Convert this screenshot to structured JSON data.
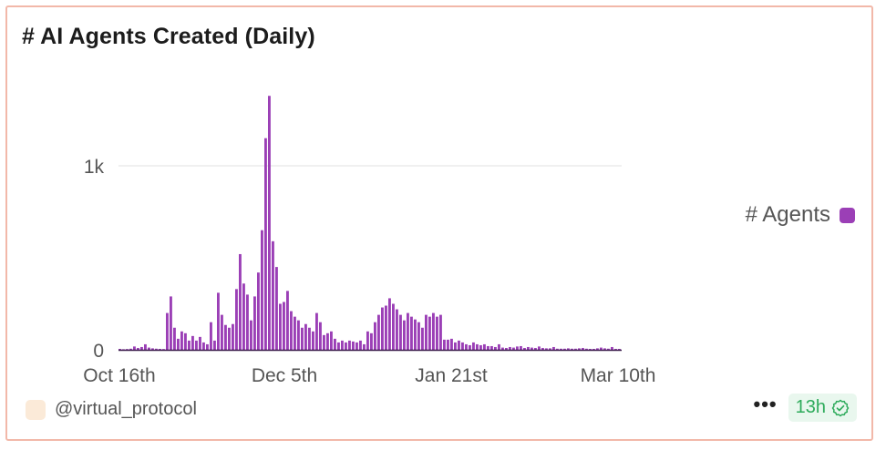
{
  "title": "# AI Agents Created (Daily)",
  "chart_data": {
    "type": "bar",
    "x_start": "2024-10-16",
    "x_end": "2025-03-10",
    "x_ticks": [
      "Oct 16th",
      "Dec 5th",
      "Jan 21st",
      "Mar 10th"
    ],
    "y_ticks": [
      "0",
      "1k"
    ],
    "ylim": [
      0,
      1400
    ],
    "grid": true,
    "legend_position": "right",
    "series": [
      {
        "name": "# Agents",
        "color": "#9b3fb6",
        "values": [
          5,
          3,
          4,
          6,
          18,
          10,
          15,
          30,
          12,
          8,
          6,
          5,
          4,
          200,
          290,
          120,
          60,
          100,
          90,
          50,
          75,
          50,
          70,
          40,
          30,
          150,
          50,
          310,
          190,
          135,
          120,
          140,
          330,
          520,
          360,
          300,
          160,
          290,
          420,
          650,
          1150,
          1380,
          590,
          450,
          250,
          260,
          320,
          210,
          180,
          160,
          120,
          140,
          120,
          100,
          200,
          150,
          80,
          90,
          100,
          60,
          40,
          50,
          40,
          50,
          45,
          40,
          50,
          30,
          100,
          90,
          150,
          190,
          230,
          240,
          280,
          250,
          220,
          190,
          160,
          200,
          180,
          165,
          150,
          120,
          190,
          180,
          200,
          180,
          190,
          55,
          55,
          60,
          40,
          50,
          40,
          30,
          25,
          40,
          30,
          25,
          30,
          20,
          20,
          15,
          30,
          12,
          10,
          15,
          12,
          18,
          20,
          10,
          15,
          12,
          10,
          18,
          10,
          8,
          8,
          15,
          6,
          6,
          6,
          8,
          6,
          6,
          8,
          10,
          6,
          5,
          5,
          8,
          12,
          8,
          6,
          15,
          5,
          5
        ]
      }
    ]
  },
  "legend": {
    "label": "# Agents"
  },
  "footer": {
    "author": "@virtual_protocol",
    "more": "•••",
    "updated": "13h"
  }
}
